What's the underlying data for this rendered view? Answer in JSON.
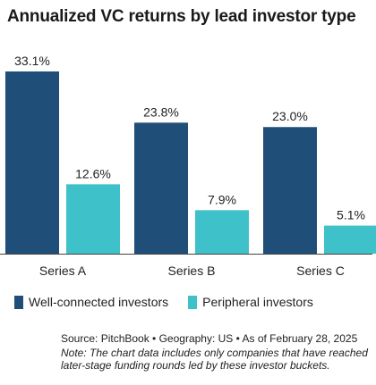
{
  "title": "Annualized VC returns by lead investor type",
  "chart_data": {
    "type": "bar",
    "categories": [
      "Series A",
      "Series B",
      "Series C"
    ],
    "series": [
      {
        "name": "Well-connected investors",
        "values": [
          33.1,
          23.8,
          23.0
        ],
        "labels": [
          "33.1%",
          "23.8%",
          "23.0%"
        ],
        "color": "#1f4e79"
      },
      {
        "name": "Peripheral investors",
        "values": [
          12.6,
          7.9,
          5.1
        ],
        "labels": [
          "12.6%",
          "7.9%",
          "5.1%"
        ],
        "color": "#3ec1c9"
      }
    ],
    "ylim": [
      0,
      33.1
    ],
    "grid": false,
    "legend_position": "bottom"
  },
  "source": "Source: PitchBook • Geography: US • As of February 28, 2025",
  "note": "Note: The chart data includes only companies that have reached later-stage funding rounds led by these investor buckets."
}
